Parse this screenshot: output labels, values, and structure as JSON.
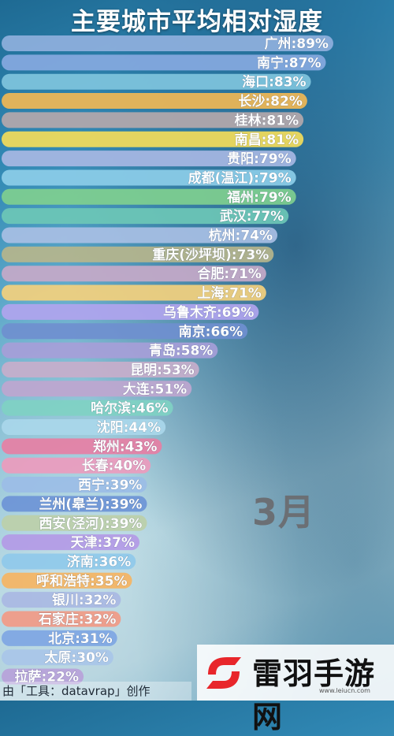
{
  "header": {
    "title": "主要城市平均相对湿度"
  },
  "overlay": {
    "month": "3月"
  },
  "footer": {
    "credit": "由「工具：datavrap」创作"
  },
  "watermark": {
    "name": "雷羽手游网",
    "url": "www.leiucn.com"
  },
  "chart_data": {
    "type": "bar",
    "orientation": "horizontal",
    "title": "主要城市平均相对湿度",
    "unit": "%",
    "xlim": [
      0,
      100
    ],
    "categories": [
      "广州",
      "南宁",
      "海口",
      "长沙",
      "桂林",
      "南昌",
      "贵阳",
      "成都(温江)",
      "福州",
      "武汉",
      "杭州",
      "重庆(沙坪坝)",
      "合肥",
      "上海",
      "乌鲁木齐",
      "南京",
      "青岛",
      "昆明",
      "大连",
      "哈尔滨",
      "沈阳",
      "郑州",
      "长春",
      "西宁",
      "兰州(皋兰)",
      "西安(泾河)",
      "天津",
      "济南",
      "呼和浩特",
      "银川",
      "石家庄",
      "北京",
      "太原",
      "拉萨"
    ],
    "values": [
      89,
      87,
      83,
      82,
      81,
      81,
      79,
      79,
      79,
      77,
      74,
      73,
      71,
      71,
      69,
      66,
      58,
      53,
      51,
      46,
      44,
      43,
      40,
      39,
      39,
      39,
      37,
      36,
      35,
      32,
      32,
      31,
      30,
      22
    ],
    "labels": [
      "广州:89%",
      "南宁:87%",
      "海口:83%",
      "长沙:82%",
      "桂林:81%",
      "南昌:81%",
      "贵阳:79%",
      "成都(温江):79%",
      "福州:79%",
      "武汉:77%",
      "杭州:74%",
      "重庆(沙坪坝):73%",
      "合肥:71%",
      "上海:71%",
      "乌鲁木齐:69%",
      "南京:66%",
      "青岛:58%",
      "昆明:53%",
      "大连:51%",
      "哈尔滨:46%",
      "沈阳:44%",
      "郑州:43%",
      "长春:40%",
      "西宁:39%",
      "兰州(皋兰):39%",
      "西安(泾河):39%",
      "天津:37%",
      "济南:36%",
      "呼和浩特:35%",
      "银川:32%",
      "石家庄:32%",
      "北京:31%",
      "太原:30%",
      "拉萨:22%"
    ],
    "colors": [
      "#8fb0dd",
      "#86a9e0",
      "#7fc4dd",
      "#f0b755",
      "#b4a8ab",
      "#f3dc5a",
      "#a7b7e3",
      "#8ccde8",
      "#7fcf8f",
      "#6cc7b6",
      "#a8bfe4",
      "#b6b58c",
      "#c5a9c8",
      "#f3d07d",
      "#b0a4ee",
      "#6f8fcf",
      "#a69ed8",
      "#c7aecb",
      "#bea6cf",
      "#7fd1c3",
      "#a9d7ea",
      "#e67fa4",
      "#ec9bbd",
      "#9bbde6",
      "#6c94d6",
      "#bccfa9",
      "#b39ae6",
      "#8fc9ea",
      "#f5b463",
      "#a9b8e3",
      "#f19a86",
      "#7ea6e3",
      "#a8c5e8",
      "#b7a2d9"
    ],
    "grid": false,
    "legend": "none"
  }
}
